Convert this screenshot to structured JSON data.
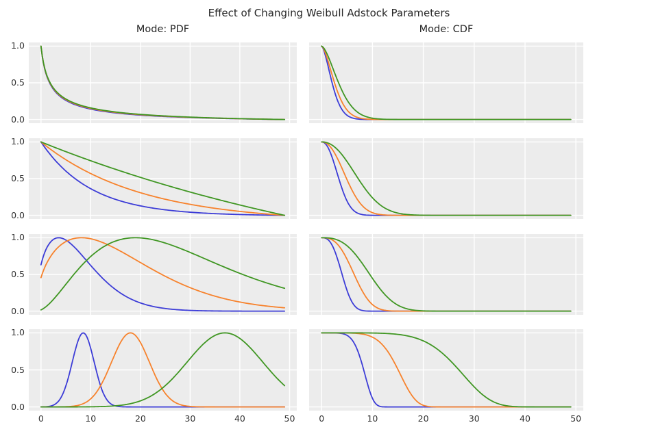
{
  "chart_data": {
    "type": "line",
    "suptitle": "Effect of Changing Weibull Adstock Parameters",
    "columns": [
      {
        "key": "pdf",
        "title": "Mode: PDF"
      },
      {
        "key": "cdf",
        "title": "Mode: CDF"
      }
    ],
    "xlabel": "",
    "ylabel": "",
    "xlim": [
      -2.45,
      51.45
    ],
    "ylim": [
      -0.05,
      1.05
    ],
    "x_range": [
      0,
      49
    ],
    "grid": true,
    "legend": "none",
    "panel_bg": "#ececec",
    "grid_color": "#ffffff",
    "palette": {
      "blue": "#3c3cd7",
      "orange": "#f7822c",
      "green": "#3f9622"
    },
    "x_ticks": [
      {
        "v": 0,
        "label": "0"
      },
      {
        "v": 10,
        "label": "10"
      },
      {
        "v": 20,
        "label": "20"
      },
      {
        "v": 30,
        "label": "30"
      },
      {
        "v": 40,
        "label": "40"
      },
      {
        "v": 50,
        "label": "50"
      }
    ],
    "y_ticks": [
      {
        "v": 1.0,
        "label": "1.0"
      },
      {
        "v": 0.5,
        "label": "0.5"
      },
      {
        "v": 0.0,
        "label": "0.0"
      }
    ],
    "rows": [
      {
        "pdf": {
          "series": [
            {
              "color": "blue",
              "fn": "wpdf",
              "k": 0.5,
              "lam": 16,
              "shift": 1,
              "norm": "minmax"
            },
            {
              "color": "orange",
              "fn": "wpdf",
              "k": 0.5,
              "lam": 22,
              "shift": 1,
              "norm": "minmax"
            },
            {
              "color": "green",
              "fn": "wpdf",
              "k": 0.5,
              "lam": 30,
              "shift": 1,
              "norm": "minmax"
            }
          ]
        },
        "cdf": {
          "series": [
            {
              "color": "blue",
              "fn": "surv",
              "k": 1.6,
              "lam": 2.6,
              "norm": "none"
            },
            {
              "color": "orange",
              "fn": "surv",
              "k": 1.6,
              "lam": 3.2,
              "norm": "none"
            },
            {
              "color": "green",
              "fn": "surv",
              "k": 1.6,
              "lam": 4.2,
              "norm": "none"
            }
          ]
        }
      },
      {
        "pdf": {
          "series": [
            {
              "color": "blue",
              "fn": "wpdf",
              "k": 1,
              "lam": 10,
              "shift": 0,
              "norm": "minmax"
            },
            {
              "color": "orange",
              "fn": "wpdf",
              "k": 1,
              "lam": 20,
              "shift": 0,
              "norm": "minmax"
            },
            {
              "color": "green",
              "fn": "wpdf",
              "k": 1,
              "lam": 80,
              "shift": 0,
              "norm": "minmax"
            }
          ]
        },
        "cdf": {
          "series": [
            {
              "color": "blue",
              "fn": "surv",
              "k": 2.2,
              "lam": 4.0,
              "norm": "none"
            },
            {
              "color": "orange",
              "fn": "surv",
              "k": 2.2,
              "lam": 5.8,
              "norm": "none"
            },
            {
              "color": "green",
              "fn": "surv",
              "k": 2.2,
              "lam": 8.5,
              "norm": "none"
            }
          ]
        }
      },
      {
        "pdf": {
          "series": [
            {
              "color": "blue",
              "fn": "wpdf",
              "k": 1.5,
              "lam": 9.5,
              "shift": 1,
              "norm": "max"
            },
            {
              "color": "orange",
              "fn": "wpdf",
              "k": 1.5,
              "lam": 19,
              "shift": 1,
              "norm": "max"
            },
            {
              "color": "green",
              "fn": "gpdf",
              "a": 3,
              "theta": 10,
              "shift": 1,
              "norm": "max"
            }
          ]
        },
        "cdf": {
          "series": [
            {
              "color": "blue",
              "fn": "surv",
              "k": 2.8,
              "lam": 4.6,
              "norm": "none"
            },
            {
              "color": "orange",
              "fn": "surv",
              "k": 2.8,
              "lam": 7.3,
              "norm": "none"
            },
            {
              "color": "green",
              "fn": "surv",
              "k": 2.8,
              "lam": 10.8,
              "norm": "none"
            }
          ]
        }
      },
      {
        "pdf": {
          "series": [
            {
              "color": "blue",
              "fn": "gauss",
              "mu": 8.5,
              "sigma": 2.2,
              "norm": "max"
            },
            {
              "color": "orange",
              "fn": "gauss",
              "mu": 18,
              "sigma": 3.8,
              "norm": "max"
            },
            {
              "color": "green",
              "fn": "gauss",
              "mu": 37,
              "sigma": 7.6,
              "norm": "max"
            }
          ]
        },
        "cdf": {
          "series": [
            {
              "color": "blue",
              "fn": "surv",
              "k": 6,
              "lam": 8.8,
              "norm": "none"
            },
            {
              "color": "orange",
              "fn": "surv",
              "k": 6,
              "lam": 16,
              "norm": "none"
            },
            {
              "color": "green",
              "fn": "surv",
              "k": 6,
              "lam": 28.7,
              "norm": "none"
            }
          ]
        }
      }
    ]
  }
}
